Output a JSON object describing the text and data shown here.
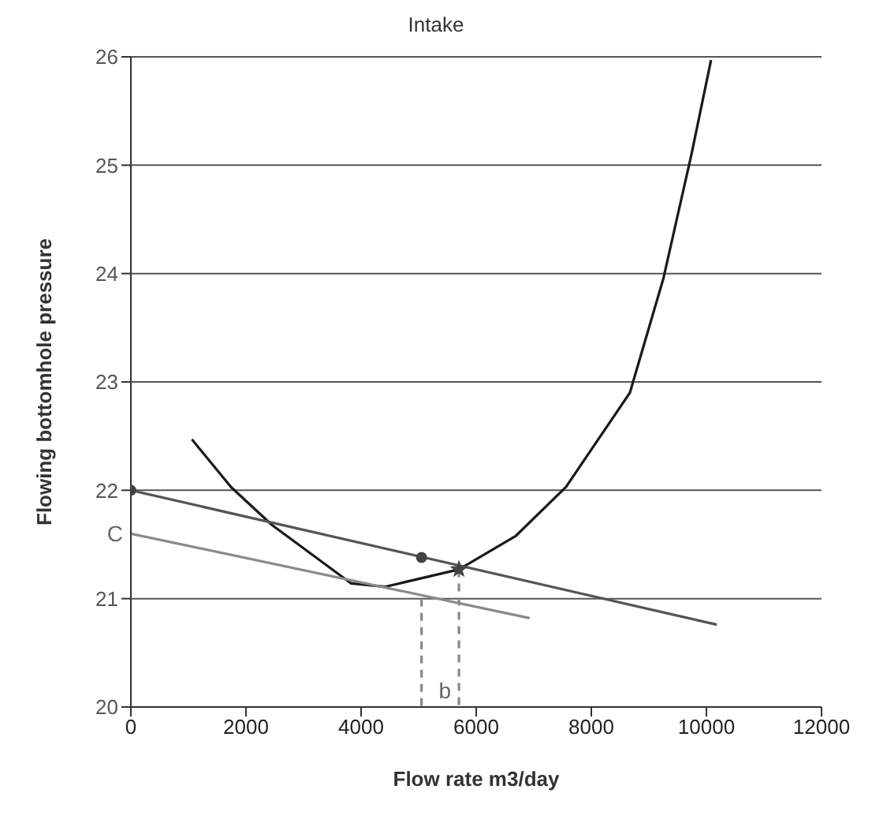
{
  "chart_data": {
    "type": "line",
    "title": "Intake",
    "xlabel": "Flow rate m3/day",
    "ylabel": "Flowing bottomhole pressure",
    "xlim": [
      0,
      12000
    ],
    "ylim": [
      20,
      26
    ],
    "xticks": [
      0,
      2000,
      4000,
      6000,
      8000,
      10000,
      12000
    ],
    "yticks": [
      20,
      21,
      22,
      23,
      24,
      25,
      26
    ],
    "grid": "y",
    "legend": false,
    "series": [
      {
        "color": "#1a1a1a",
        "marker": "none",
        "x": [
          1060,
          1740,
          2450,
          3830,
          4420,
          5700,
          6690,
          7560,
          8670,
          9250,
          9740,
          10080
        ],
        "values": [
          22.47,
          22.03,
          21.68,
          21.14,
          21.11,
          21.27,
          21.58,
          22.03,
          22.9,
          23.95,
          25.1,
          25.97
        ]
      },
      {
        "type": "line",
        "color": "#555555",
        "marker": "none",
        "x": [
          0,
          10180
        ],
        "values": [
          22,
          20.76
        ]
      },
      {
        "type": "line",
        "color": "#8a8a8a",
        "marker": "none",
        "x": [
          0,
          6930
        ],
        "values": [
          21.6,
          20.82
        ]
      },
      {
        "type": "line",
        "color": "#888888",
        "marker": "none",
        "line_style": "dashed",
        "x": [
          5050,
          5050
        ],
        "values": [
          21,
          20
        ]
      },
      {
        "type": "line",
        "color": "#888888",
        "marker": "none",
        "line_style": "dashed",
        "x": [
          5700,
          5700
        ],
        "values": [
          21.27,
          20
        ]
      },
      {
        "type": "scatter",
        "color": "#444444",
        "marker": "circle",
        "x": [
          0,
          5050
        ],
        "values": [
          22,
          21.38
        ]
      },
      {
        "type": "scatter",
        "color": "#444444",
        "marker": "star",
        "x": [
          5700
        ],
        "values": [
          21.27
        ]
      }
    ],
    "annotations": [
      {
        "text": "C",
        "x": 0,
        "y": 21.6
      },
      {
        "text": "b",
        "x": 5700,
        "y": 20.15
      }
    ]
  }
}
